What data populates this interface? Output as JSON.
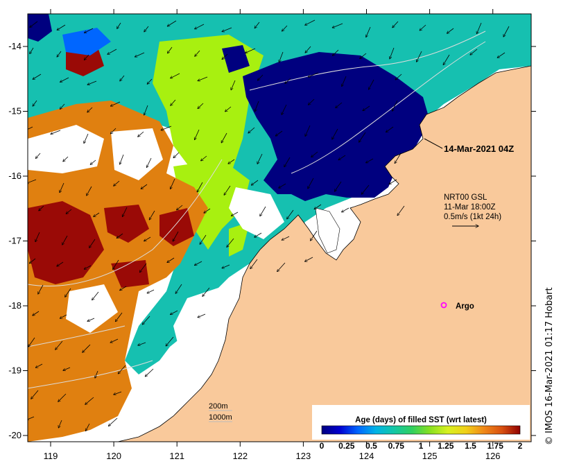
{
  "map": {
    "timestamp": "14-Mar-2021 04Z",
    "current_label": {
      "product": "NRT00 GSL",
      "time": "11-Mar 18:00Z",
      "scale": "0.5m/s (1kt 24h)"
    },
    "argo_label": "Argo",
    "depth_labels": [
      "200m",
      "1000m"
    ],
    "credit": "© IMOS 16-Mar-2021 01:17 Hobart",
    "x_ticks": [
      "119",
      "120",
      "121",
      "122",
      "123",
      "124",
      "125",
      "126"
    ],
    "y_ticks": [
      "-14",
      "-15",
      "-16",
      "-17",
      "-18",
      "-19",
      "-20"
    ],
    "colorbar": {
      "title": "Age (days) of filled SST (wrt latest)",
      "tick_labels": [
        "0",
        "0.25",
        "0.5",
        "0.75",
        "1",
        "1.25",
        "1.5",
        "1.75",
        "2"
      ],
      "stops": [
        "#00007f",
        "#0000d0",
        "#0066ff",
        "#00b3e6",
        "#13c7a6",
        "#30d060",
        "#88e020",
        "#d8f020",
        "#f0d018",
        "#f08818",
        "#d85010",
        "#900000"
      ]
    },
    "colors": {
      "land": "#f9c99b",
      "recent": "#00007f",
      "teal": "#16c0b0",
      "lime": "#a8f010",
      "orange": "#e08010",
      "darkred": "#9a0a06",
      "argo": "#ff00ff"
    }
  }
}
